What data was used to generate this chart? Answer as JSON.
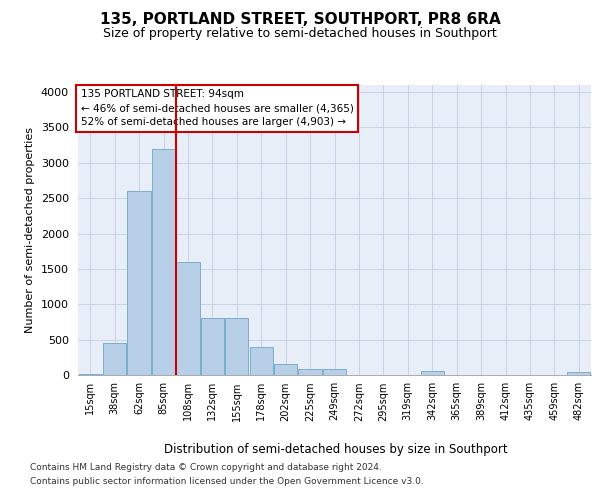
{
  "title1": "135, PORTLAND STREET, SOUTHPORT, PR8 6RA",
  "title2": "Size of property relative to semi-detached houses in Southport",
  "xlabel": "Distribution of semi-detached houses by size in Southport",
  "ylabel": "Number of semi-detached properties",
  "footnote1": "Contains HM Land Registry data © Crown copyright and database right 2024.",
  "footnote2": "Contains public sector information licensed under the Open Government Licence v3.0.",
  "bin_labels": [
    "15sqm",
    "38sqm",
    "62sqm",
    "85sqm",
    "108sqm",
    "132sqm",
    "155sqm",
    "178sqm",
    "202sqm",
    "225sqm",
    "249sqm",
    "272sqm",
    "295sqm",
    "319sqm",
    "342sqm",
    "365sqm",
    "389sqm",
    "412sqm",
    "435sqm",
    "459sqm",
    "482sqm"
  ],
  "bar_values": [
    10,
    450,
    2600,
    3200,
    1600,
    800,
    800,
    390,
    160,
    90,
    80,
    0,
    0,
    0,
    60,
    0,
    0,
    0,
    0,
    0,
    40
  ],
  "bar_color": "#b8cfe8",
  "bar_edge_color": "#7aaecc",
  "grid_color": "#c8d4e6",
  "vline_color": "#cc0000",
  "vline_pos": 3.5,
  "annotation_line1": "135 PORTLAND STREET: 94sqm",
  "annotation_line2": "← 46% of semi-detached houses are smaller (4,365)",
  "annotation_line3": "52% of semi-detached houses are larger (4,903) →",
  "annotation_box_facecolor": "#ffffff",
  "annotation_box_edgecolor": "#cc0000",
  "ylim_max": 4100,
  "yticks": [
    0,
    500,
    1000,
    1500,
    2000,
    2500,
    3000,
    3500,
    4000
  ],
  "bg_color": "#e8eef8",
  "title1_fontsize": 11,
  "title2_fontsize": 9
}
